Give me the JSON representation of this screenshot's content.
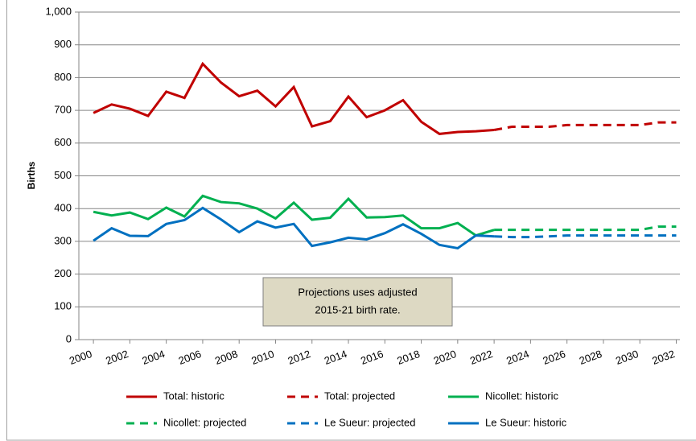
{
  "chart_data": {
    "type": "line",
    "y_label": "Births",
    "annotation": "Projections uses adjusted\n2015-21 birth rate.",
    "x": [
      2000,
      2001,
      2002,
      2003,
      2004,
      2005,
      2006,
      2007,
      2008,
      2009,
      2010,
      2011,
      2012,
      2013,
      2014,
      2015,
      2016,
      2017,
      2018,
      2019,
      2020,
      2021,
      2022,
      2023,
      2024,
      2025,
      2026,
      2027,
      2028,
      2029,
      2030,
      2031,
      2032
    ],
    "xlim": [
      1999.2,
      2032.2
    ],
    "xticks": [
      2000,
      2002,
      2004,
      2006,
      2008,
      2010,
      2012,
      2014,
      2016,
      2018,
      2020,
      2022,
      2024,
      2026,
      2028,
      2030,
      2032
    ],
    "ylim": [
      0,
      1000
    ],
    "yticks": [
      0,
      100,
      200,
      300,
      400,
      500,
      600,
      700,
      800,
      900,
      {
        "value": 1000,
        "label": "1,000"
      }
    ],
    "grid": true,
    "series": [
      {
        "name": "Total: historic",
        "color": "#c00000",
        "dashed": false,
        "values": [
          692,
          718,
          705,
          683,
          757,
          738,
          842,
          785,
          743,
          760,
          712,
          771,
          651,
          667,
          742,
          679,
          700,
          731,
          665,
          628,
          634,
          636,
          640,
          null,
          null,
          null,
          null,
          null,
          null,
          null,
          null,
          null,
          null
        ]
      },
      {
        "name": "Total: projected",
        "color": "#c00000",
        "dashed": true,
        "values": [
          null,
          null,
          null,
          null,
          null,
          null,
          null,
          null,
          null,
          null,
          null,
          null,
          null,
          null,
          null,
          null,
          null,
          null,
          null,
          null,
          null,
          null,
          640,
          650,
          650,
          650,
          655,
          655,
          655,
          655,
          655,
          663,
          663
        ]
      },
      {
        "name": "Nicollet: historic",
        "color": "#00b050",
        "dashed": false,
        "values": [
          390,
          379,
          388,
          368,
          403,
          376,
          439,
          420,
          416,
          400,
          370,
          418,
          366,
          372,
          430,
          373,
          374,
          379,
          340,
          340,
          356,
          318,
          335,
          null,
          null,
          null,
          null,
          null,
          null,
          null,
          null,
          null,
          null
        ]
      },
      {
        "name": "Nicollet: projected",
        "color": "#00b050",
        "dashed": true,
        "values": [
          null,
          null,
          null,
          null,
          null,
          null,
          null,
          null,
          null,
          null,
          null,
          null,
          null,
          null,
          null,
          null,
          null,
          null,
          null,
          null,
          null,
          null,
          335,
          335,
          335,
          335,
          335,
          335,
          335,
          335,
          335,
          345,
          345
        ]
      },
      {
        "name": "Le Sueur: projected",
        "color": "#0070c0",
        "dashed": true,
        "values": [
          null,
          null,
          null,
          null,
          null,
          null,
          null,
          null,
          null,
          null,
          null,
          null,
          null,
          null,
          null,
          null,
          null,
          null,
          null,
          null,
          null,
          null,
          315,
          313,
          313,
          315,
          318,
          318,
          318,
          318,
          318,
          318,
          318
        ]
      },
      {
        "name": "Le Sueur: historic",
        "color": "#0070c0",
        "dashed": false,
        "values": [
          302,
          340,
          317,
          316,
          353,
          365,
          402,
          367,
          328,
          361,
          342,
          353,
          286,
          297,
          311,
          306,
          325,
          352,
          323,
          289,
          279,
          318,
          315,
          null,
          null,
          null,
          null,
          null,
          null,
          null,
          null,
          null,
          null
        ]
      }
    ]
  }
}
